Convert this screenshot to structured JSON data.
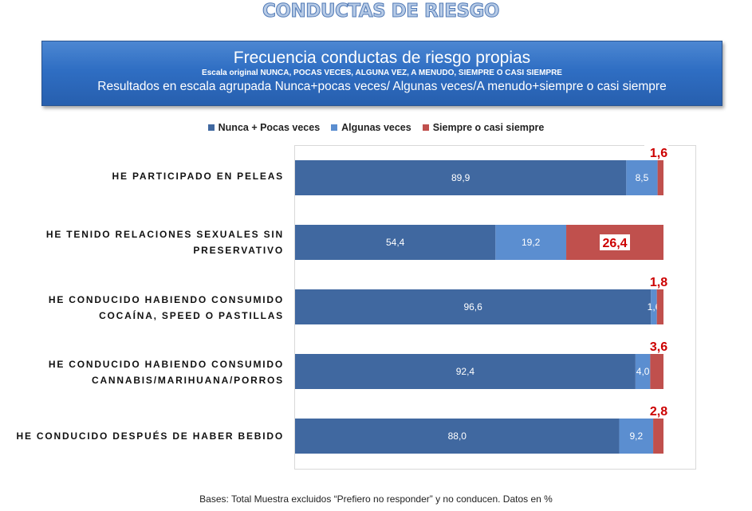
{
  "page_title": "CONDUCTAS DE RIESGO",
  "banner": {
    "title": "Frecuencia conductas de riesgo propias",
    "scale_note": "Escala original NUNCA, POCAS VECES, ALGUNA VEZ, A MENUDO, SIEMPRE O CASI SIEMPRE",
    "grouping_note": "Resultados en escala agrupada Nunca+pocas veces/ Algunas veces/A menudo+siempre o casi siempre"
  },
  "footnote": "Bases: Total Muestra excluidos “Prefiero no responder” y no conducen. Datos en %",
  "colors": {
    "series1": "#4068a0",
    "series2": "#5b8ed0",
    "series3": "#c0504d",
    "highlight_label": "#cc0000"
  },
  "chart_data": {
    "type": "bar",
    "orientation": "horizontal",
    "stacked": true,
    "xlim": [
      0,
      100
    ],
    "legend_position": "top",
    "categories": [
      "HE PARTICIPADO EN PELEAS",
      "HE TENIDO RELACIONES SEXUALES SIN PRESERVATIVO",
      "HE CONDUCIDO HABIENDO CONSUMIDO COCAÍNA, SPEED O PASTILLAS",
      "HE CONDUCIDO HABIENDO CONSUMIDO CANNABIS/MARIHUANA/PORROS",
      "HE CONDUCIDO DESPUÉS DE HABER BEBIDO"
    ],
    "series": [
      {
        "name": "Nunca + Pocas veces",
        "values": [
          89.9,
          54.4,
          96.6,
          92.4,
          88.0
        ],
        "labels": [
          "89,9",
          "54,4",
          "96,6",
          "92,4",
          "88,0"
        ]
      },
      {
        "name": "Algunas veces",
        "values": [
          8.5,
          19.2,
          1.6,
          4.0,
          9.2
        ],
        "labels": [
          "8,5",
          "19,2",
          "1,6",
          "4,0",
          "9,2"
        ]
      },
      {
        "name": "Siempre o casi siempre",
        "values": [
          1.6,
          26.4,
          1.8,
          3.6,
          2.8
        ],
        "labels": [
          "1,6",
          "26,4",
          "1,8",
          "3,6",
          "2,8"
        ]
      }
    ]
  }
}
